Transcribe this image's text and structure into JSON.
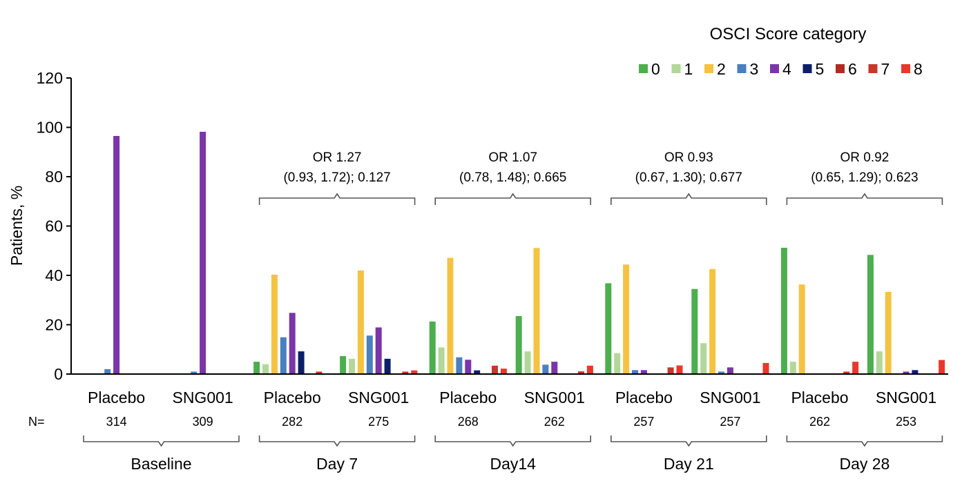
{
  "chart_data": {
    "type": "bar",
    "ylabel": "Patients, %",
    "xlabel": "",
    "ylim": [
      0,
      120
    ],
    "yticks": [
      0,
      20,
      40,
      60,
      80,
      100,
      120
    ],
    "grid": false,
    "legend": {
      "title": "OSCI Score category",
      "placement": "top-right",
      "entries": [
        {
          "label": "0",
          "color": "#4cae4f"
        },
        {
          "label": "1",
          "color": "#b3d79a"
        },
        {
          "label": "2",
          "color": "#f5c342"
        },
        {
          "label": "3",
          "color": "#4a7fc1"
        },
        {
          "label": "4",
          "color": "#7a35a8"
        },
        {
          "label": "5",
          "color": "#0d1f6b"
        },
        {
          "label": "6",
          "color": "#b22b22"
        },
        {
          "label": "7",
          "color": "#c8372b"
        },
        {
          "label": "8",
          "color": "#e8382d"
        }
      ]
    },
    "n_prefix": "N=",
    "groups": [
      {
        "label": "Baseline",
        "odds_ratio": null,
        "arms": [
          {
            "label": "Placebo",
            "n": "314",
            "values": [
              0,
              0,
              0,
              2,
              96.5,
              0,
              0,
              0,
              0
            ]
          },
          {
            "label": "SNG001",
            "n": "309",
            "values": [
              0,
              0,
              0,
              1,
              98.2,
              0,
              0,
              0,
              0
            ]
          }
        ]
      },
      {
        "label": "Day 7",
        "odds_ratio": {
          "line1": "OR 1.27",
          "line2": "(0.93, 1.72); 0.127"
        },
        "arms": [
          {
            "label": "Placebo",
            "n": "282",
            "values": [
              5,
              4,
              40.3,
              14.9,
              24.8,
              9.2,
              0,
              1,
              0
            ]
          },
          {
            "label": "SNG001",
            "n": "275",
            "values": [
              7.3,
              6.2,
              42,
              15.6,
              18.9,
              6.2,
              0,
              1,
              1.5
            ]
          }
        ]
      },
      {
        "label": "Day14",
        "odds_ratio": {
          "line1": "OR 1.07",
          "line2": "(0.78, 1.48); 0.665"
        },
        "arms": [
          {
            "label": "Placebo",
            "n": "268",
            "values": [
              21.3,
              10.8,
              47.1,
              6.8,
              5.8,
              1.5,
              0,
              3.4,
              2.2
            ]
          },
          {
            "label": "SNG001",
            "n": "262",
            "values": [
              23.5,
              9.2,
              51.1,
              3.8,
              5,
              0,
              0,
              1.1,
              3.4
            ]
          }
        ]
      },
      {
        "label": "Day 21",
        "odds_ratio": {
          "line1": "OR 0.93",
          "line2": "(0.67, 1.30); 0.677"
        },
        "arms": [
          {
            "label": "Placebo",
            "n": "257",
            "values": [
              36.8,
              8.5,
              44.4,
              1.6,
              1.6,
              0,
              0,
              2.7,
              3.5
            ]
          },
          {
            "label": "SNG001",
            "n": "257",
            "values": [
              34.5,
              12.5,
              42.6,
              1,
              2.7,
              0,
              0,
              0,
              4.5
            ]
          }
        ]
      },
      {
        "label": "Day 28",
        "odds_ratio": {
          "line1": "OR 0.92",
          "line2": "(0.65, 1.29); 0.623"
        },
        "arms": [
          {
            "label": "Placebo",
            "n": "262",
            "values": [
              51.2,
              5,
              36.3,
              0,
              0,
              0,
              0,
              1,
              5
            ]
          },
          {
            "label": "SNG001",
            "n": "253",
            "values": [
              48.3,
              9.2,
              33.3,
              0,
              1,
              1.6,
              0,
              0,
              5.7
            ]
          }
        ]
      }
    ]
  }
}
